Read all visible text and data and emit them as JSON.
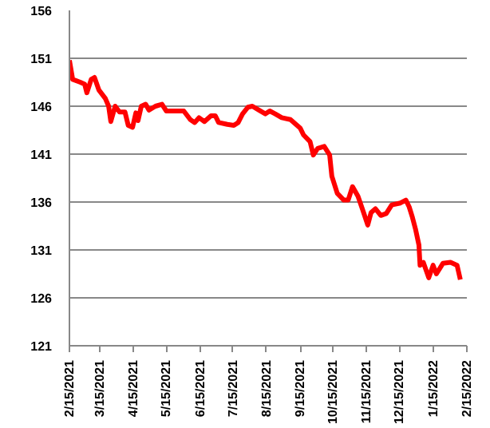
{
  "chart_data": {
    "type": "line",
    "x": [
      "2021-02-15",
      "2021-02-18",
      "2021-02-25",
      "2021-03-01",
      "2021-03-03",
      "2021-03-07",
      "2021-03-10",
      "2021-03-14",
      "2021-03-20",
      "2021-03-23",
      "2021-03-25",
      "2021-03-29",
      "2021-04-02",
      "2021-04-07",
      "2021-04-10",
      "2021-04-14",
      "2021-04-17",
      "2021-04-19",
      "2021-04-22",
      "2021-04-26",
      "2021-04-29",
      "2021-05-05",
      "2021-05-11",
      "2021-05-15",
      "2021-05-21",
      "2021-05-31",
      "2021-06-06",
      "2021-06-10",
      "2021-06-14",
      "2021-06-19",
      "2021-06-25",
      "2021-06-29",
      "2021-07-02",
      "2021-07-10",
      "2021-07-16",
      "2021-07-20",
      "2021-07-24",
      "2021-07-29",
      "2021-08-02",
      "2021-08-08",
      "2021-08-14",
      "2021-08-18",
      "2021-08-23",
      "2021-08-29",
      "2021-09-06",
      "2021-09-15",
      "2021-09-18",
      "2021-09-24",
      "2021-09-27",
      "2021-10-01",
      "2021-10-07",
      "2021-10-12",
      "2021-10-14",
      "2021-10-19",
      "2021-10-25",
      "2021-10-29",
      "2021-11-02",
      "2021-11-07",
      "2021-11-11",
      "2021-11-16",
      "2021-11-19",
      "2021-11-23",
      "2021-11-28",
      "2021-12-03",
      "2021-12-08",
      "2021-12-16",
      "2021-12-21",
      "2021-12-24",
      "2021-12-27",
      "2021-12-30",
      "2022-01-02",
      "2022-01-03",
      "2022-01-06",
      "2022-01-11",
      "2022-01-15",
      "2022-01-18",
      "2022-01-24",
      "2022-01-31",
      "2022-02-06",
      "2022-02-09"
    ],
    "series": [
      {
        "color": "#ff0000",
        "values": [
          150.8,
          148.8,
          148.5,
          148.3,
          147.4,
          148.8,
          149,
          147.7,
          146.8,
          146,
          144.4,
          146,
          145.4,
          145.4,
          144,
          143.8,
          145.3,
          144.5,
          146,
          146.2,
          145.6,
          146,
          146.2,
          145.5,
          145.5,
          145.5,
          144.6,
          144.3,
          144.8,
          144.4,
          145,
          145,
          144.3,
          144.1,
          144,
          144.3,
          145.2,
          145.9,
          146,
          145.6,
          145.2,
          145.5,
          145.2,
          144.8,
          144.6,
          143.7,
          143,
          142.3,
          140.9,
          141.6,
          141.8,
          140.9,
          138.7,
          136.9,
          136.2,
          136.2,
          137.6,
          136.6,
          135.3,
          133.6,
          134.9,
          135.3,
          134.6,
          134.8,
          135.7,
          135.9,
          136.2,
          135.5,
          134.4,
          133.1,
          131.5,
          129.4,
          129.7,
          128.1,
          129.4,
          128.5,
          129.6,
          129.7,
          129.4,
          127.9
        ]
      }
    ],
    "xlim": [
      "2021-02-15",
      "2022-02-15"
    ],
    "xticks": [
      {
        "value": "2021-02-15",
        "label": "2/15/2021"
      },
      {
        "value": "2021-03-15",
        "label": "3/15/2021"
      },
      {
        "value": "2021-04-15",
        "label": "4/15/2021"
      },
      {
        "value": "2021-05-15",
        "label": "5/15/2021"
      },
      {
        "value": "2021-06-15",
        "label": "6/15/2021"
      },
      {
        "value": "2021-07-15",
        "label": "7/15/2021"
      },
      {
        "value": "2021-08-15",
        "label": "8/15/2021"
      },
      {
        "value": "2021-09-15",
        "label": "9/15/2021"
      },
      {
        "value": "2021-10-15",
        "label": "10/15/2021"
      },
      {
        "value": "2021-11-15",
        "label": "11/15/2021"
      },
      {
        "value": "2021-12-15",
        "label": "12/15/2021"
      },
      {
        "value": "2022-01-15",
        "label": "1/15/2022"
      },
      {
        "value": "2022-02-15",
        "label": "2/15/2022"
      }
    ],
    "ylim": [
      121,
      156
    ],
    "yticks": [
      121,
      126,
      131,
      136,
      141,
      146,
      151,
      156
    ],
    "grid": "y",
    "marker": "none",
    "line_style": "solid"
  }
}
